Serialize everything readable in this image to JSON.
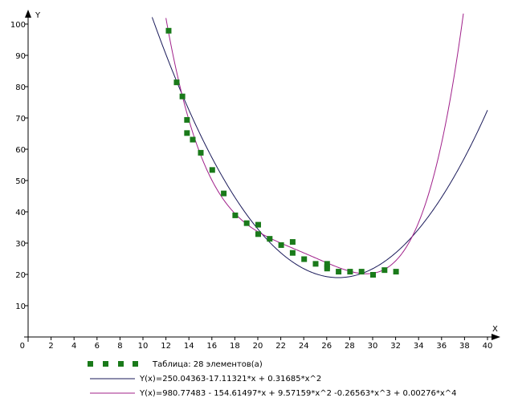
{
  "chart_data": {
    "type": "scatter",
    "x_axis_label": "X",
    "y_axis_label": "Y",
    "xlim": [
      0,
      40
    ],
    "ylim": [
      0,
      100
    ],
    "x_ticks": [
      0,
      2,
      4,
      6,
      8,
      10,
      12,
      14,
      16,
      18,
      20,
      22,
      24,
      26,
      28,
      30,
      32,
      34,
      36,
      38,
      40
    ],
    "y_ticks": [
      10,
      20,
      30,
      40,
      50,
      60,
      70,
      80,
      90,
      100
    ],
    "grid": false,
    "legend_position": "bottom",
    "colors": {
      "points": "#1a7a1a",
      "quadratic": "#1a1a5a",
      "quartic": "#a0208a",
      "axis": "#000000"
    },
    "series": [
      {
        "name": "Таблица: 28 элементов(а)",
        "kind": "points",
        "x": [
          12.2,
          12.9,
          13.4,
          13.8,
          13.8,
          14.3,
          15.0,
          16.0,
          17.0,
          18.0,
          19.0,
          20.0,
          20.0,
          21.0,
          22.0,
          23.0,
          23.0,
          24.0,
          25.0,
          26.0,
          26.0,
          27.0,
          28.0,
          29.0,
          30.0,
          31.0,
          32.0,
          26.0
        ],
        "y": [
          98.0,
          81.5,
          77.0,
          69.5,
          65.3,
          63.2,
          59.0,
          53.5,
          46.0,
          39.0,
          36.5,
          36.0,
          33.0,
          31.5,
          29.5,
          30.5,
          27.0,
          25.0,
          23.5,
          23.5,
          22.0,
          21.0,
          21.0,
          21.0,
          20.0,
          21.5,
          21.0,
          22.5
        ]
      },
      {
        "name": "Y(x)=250.04363-17.11321*x + 0.31685*x^2",
        "kind": "poly",
        "coefficients": [
          250.04363,
          -17.11321,
          0.31685
        ],
        "domain": [
          10.8,
          40
        ]
      },
      {
        "name": "Y(x)=980.77483 - 154.61497*x + 9.57159*x^2 -0.26563*x^3 + 0.00276*x^4",
        "kind": "poly",
        "coefficients": [
          980.77483,
          -154.61497,
          9.57159,
          -0.26563,
          0.00276
        ],
        "domain": [
          12,
          37.9
        ]
      }
    ]
  }
}
